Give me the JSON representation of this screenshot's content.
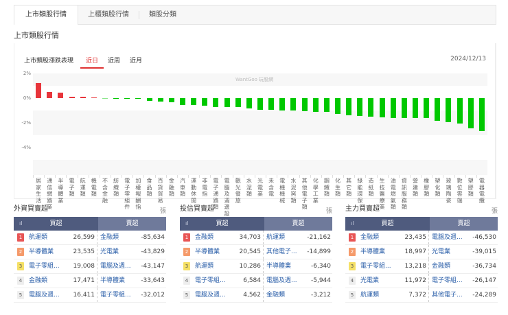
{
  "tabs": [
    {
      "label": "上市類股行情",
      "active": true
    },
    {
      "label": "上櫃類股行情",
      "active": false
    },
    {
      "label": "類股分類",
      "active": false
    }
  ],
  "page_title": "上市類股行情",
  "card": {
    "title": "上市類股漲跌表現",
    "ranges": [
      {
        "label": "近日",
        "active": true
      },
      {
        "label": "近周",
        "active": false
      },
      {
        "label": "近月",
        "active": false
      }
    ],
    "date": "2024/12/13",
    "watermark": "WantGoo 玩股網"
  },
  "colors": {
    "up": "#e8353b",
    "down": "#00c800",
    "header_dark": "#4f5b7e",
    "header_light": "#6f7a9b",
    "link": "#2a5ea8",
    "accent": "#e03030"
  },
  "chart_data": {
    "type": "bar",
    "title": "上市類股漲跌表現",
    "xlabel": "",
    "ylabel": "%",
    "ylim": [
      -4,
      2
    ],
    "yticks": [
      "2%",
      "0%",
      "-2%",
      "-4%"
    ],
    "grid": true,
    "categories": [
      "居家生活",
      "通信網路業",
      "半導體業",
      "電子類",
      "航運類",
      "機電類",
      "不含金融",
      "紡織類",
      "電子零組件",
      "加權報酬指",
      "食品類",
      "百貨貿易",
      "金融類",
      "汽車類",
      "運動休閒",
      "非電指",
      "電子通路類",
      "電腦及週邊設",
      "觀光餐旅",
      "水泥類",
      "光電業",
      "未含電",
      "電機機械",
      "水泥窯類",
      "其他電子類",
      "化學工業",
      "鋼鐵類",
      "化生類",
      "其它類",
      "綠能環保",
      "造紙類",
      "生技醫療業",
      "油電燃氣類",
      "資訊服務類",
      "營建類",
      "橡膠類",
      "塑化類",
      "玻璃陶瓷",
      "數位雲端",
      "塑膠類",
      "電器電纜"
    ],
    "values": [
      1.2,
      0.5,
      0.45,
      0.12,
      0.09,
      0.07,
      -0.02,
      -0.05,
      -0.05,
      -0.06,
      -0.2,
      -0.28,
      -0.33,
      -0.55,
      -0.55,
      -0.62,
      -0.72,
      -0.72,
      -0.72,
      -0.82,
      -0.95,
      -0.95,
      -0.98,
      -0.98,
      -1.05,
      -1.1,
      -1.1,
      -1.3,
      -1.4,
      -1.45,
      -1.5,
      -1.55,
      -1.6,
      -1.62,
      -1.62,
      -1.62,
      -1.85,
      -1.95,
      -2.05,
      -2.45,
      -2.65
    ]
  },
  "panels": [
    {
      "title": "外資買賣超",
      "unit": "張",
      "buy_header": "買超",
      "sell_header": "賣超",
      "rows": [
        {
          "rank": "1",
          "buy_name": "航運類",
          "buy_value": "26,599",
          "sell_name": "金融類",
          "sell_value": "-85,634"
        },
        {
          "rank": "2",
          "buy_name": "半導體業",
          "buy_value": "23,535",
          "sell_name": "光電業",
          "sell_value": "-43,829"
        },
        {
          "rank": "3",
          "buy_name": "電子零組...",
          "buy_value": "19,008",
          "sell_name": "電腦及週...",
          "sell_value": "-43,147"
        },
        {
          "rank": "4",
          "buy_name": "金融類",
          "buy_value": "17,471",
          "sell_name": "半導體業",
          "sell_value": "-33,643"
        },
        {
          "rank": "5",
          "buy_name": "電腦及週...",
          "buy_value": "16,411",
          "sell_name": "電子零組...",
          "sell_value": "-32,012"
        }
      ]
    },
    {
      "title": "投信買賣超",
      "unit": "張",
      "buy_header": "買超",
      "sell_header": "賣超",
      "rows": [
        {
          "rank": "1",
          "buy_name": "金融類",
          "buy_value": "34,703",
          "sell_name": "航運類",
          "sell_value": "-21,162"
        },
        {
          "rank": "2",
          "buy_name": "半導體業",
          "buy_value": "20,545",
          "sell_name": "其他電子...",
          "sell_value": "-14,899"
        },
        {
          "rank": "3",
          "buy_name": "航運類",
          "buy_value": "10,286",
          "sell_name": "半導體業",
          "sell_value": "-6,340"
        },
        {
          "rank": "4",
          "buy_name": "電子零組...",
          "buy_value": "6,584",
          "sell_name": "電腦及週...",
          "sell_value": "-5,944"
        },
        {
          "rank": "5",
          "buy_name": "電腦及週...",
          "buy_value": "4,562",
          "sell_name": "金融類",
          "sell_value": "-3,212"
        }
      ]
    },
    {
      "title": "主力買賣超",
      "unit": "張",
      "buy_header": "買超",
      "sell_header": "賣超",
      "rows": [
        {
          "rank": "1",
          "buy_name": "金融類",
          "buy_value": "23,435",
          "sell_name": "電腦及週...",
          "sell_value": "-46,530"
        },
        {
          "rank": "2",
          "buy_name": "半導體業",
          "buy_value": "18,997",
          "sell_name": "光電業",
          "sell_value": "-39,015"
        },
        {
          "rank": "3",
          "buy_name": "電子零組...",
          "buy_value": "13,218",
          "sell_name": "金融類",
          "sell_value": "-36,734"
        },
        {
          "rank": "4",
          "buy_name": "光電業",
          "buy_value": "11,972",
          "sell_name": "電子零組...",
          "sell_value": "-26,147"
        },
        {
          "rank": "5",
          "buy_name": "航運類",
          "buy_value": "7,372",
          "sell_name": "其他電子...",
          "sell_value": "-24,289"
        }
      ]
    }
  ]
}
